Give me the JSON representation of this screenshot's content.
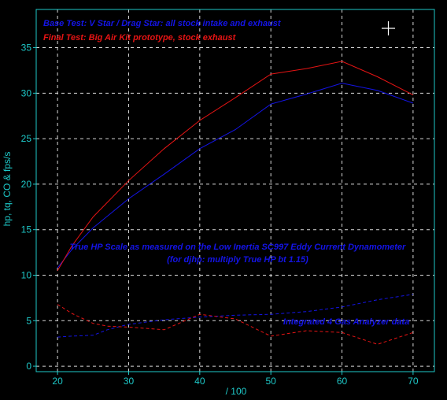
{
  "chart_data": {
    "type": "line",
    "xlabel": "/ 100",
    "ylabel": "hp, tq, CO & fps/s",
    "xlim": [
      17,
      73
    ],
    "ylim": [
      -0.6,
      39.2
    ],
    "x_ticks": [
      20,
      30,
      40,
      50,
      60,
      70
    ],
    "y_ticks": [
      0,
      5,
      10,
      15,
      20,
      25,
      30,
      35
    ],
    "grid": true,
    "grid_style": "dashed white",
    "legend_placement": "top-left",
    "series": [
      {
        "name": "Base Test: V Star / Drag Star: all stock intake and exhaust",
        "color": "#1414e6",
        "style": "solid",
        "x": [
          20,
          22,
          25,
          30,
          35,
          40,
          45,
          50,
          55,
          60,
          65,
          70
        ],
        "y": [
          10.8,
          12.8,
          15.2,
          18.4,
          21.1,
          23.9,
          26.0,
          28.8,
          29.9,
          31.1,
          30.3,
          28.9
        ]
      },
      {
        "name": "Final Test: Big Air Kit prototype, stock exhaust",
        "color": "#e61414",
        "style": "solid",
        "x": [
          20,
          22,
          25,
          30,
          35,
          40,
          45,
          50,
          55,
          60,
          65,
          70
        ],
        "y": [
          10.5,
          13.2,
          16.4,
          20.4,
          23.9,
          27.0,
          29.5,
          32.1,
          32.7,
          33.5,
          31.8,
          29.8
        ]
      },
      {
        "color": "#1414e6",
        "style": "dashed",
        "x": [
          20,
          22,
          25,
          27,
          30,
          35,
          40,
          45,
          50,
          55,
          60,
          65,
          70
        ],
        "y": [
          3.2,
          3.3,
          3.4,
          4.0,
          4.6,
          5.1,
          5.4,
          5.6,
          5.7,
          6.0,
          6.5,
          7.3,
          7.9
        ]
      },
      {
        "color": "#e61414",
        "style": "dashed",
        "x": [
          20,
          22,
          25,
          27,
          30,
          35,
          40,
          45,
          50,
          55,
          60,
          65,
          70
        ],
        "y": [
          6.8,
          5.8,
          4.7,
          4.4,
          4.3,
          4.0,
          5.7,
          5.2,
          3.3,
          3.9,
          3.7,
          2.4,
          3.7
        ]
      }
    ],
    "annotations": {
      "scale_line1": "True HP Scale as measured on the Low Inertia SC997 Eddy Current Dynamometer",
      "scale_line2": "(for djhp: multiply True HP bt 1.15)",
      "analyzer": "Integrated 4 Gas Analyzer data"
    }
  }
}
